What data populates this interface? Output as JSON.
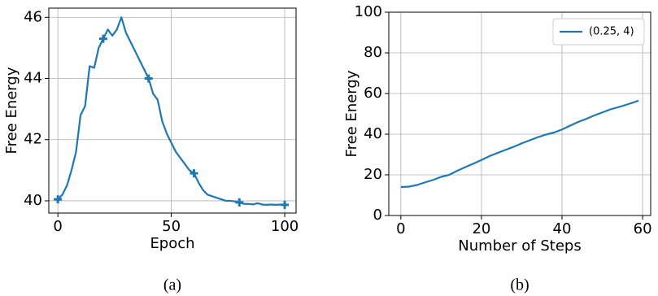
{
  "chart_data": [
    {
      "type": "line",
      "caption": "(a)",
      "xlabel": "Epoch",
      "ylabel": "Free Energy",
      "x": [
        0,
        2,
        4,
        6,
        8,
        10,
        12,
        14,
        16,
        18,
        20,
        22,
        24,
        26,
        28,
        30,
        32,
        34,
        36,
        38,
        40,
        42,
        44,
        46,
        48,
        50,
        52,
        54,
        56,
        58,
        60,
        62,
        64,
        66,
        68,
        70,
        72,
        74,
        76,
        78,
        80,
        82,
        84,
        86,
        88,
        90,
        92,
        94,
        96,
        98,
        100
      ],
      "values": [
        40.05,
        40.2,
        40.5,
        41.0,
        41.6,
        42.8,
        43.1,
        44.4,
        44.35,
        45.0,
        45.3,
        45.6,
        45.4,
        45.6,
        46.0,
        45.5,
        45.2,
        44.9,
        44.6,
        44.3,
        44.0,
        43.5,
        43.3,
        42.6,
        42.2,
        41.9,
        41.6,
        41.4,
        41.2,
        41.0,
        40.9,
        40.6,
        40.35,
        40.2,
        40.15,
        40.1,
        40.05,
        40.0,
        40.0,
        39.98,
        39.95,
        39.9,
        39.9,
        39.88,
        39.92,
        39.88,
        39.87,
        39.88,
        39.87,
        39.88,
        39.87
      ],
      "color": "#1f77b4",
      "marker": "+",
      "markevery": 10,
      "xlim": [
        -4,
        105
      ],
      "xticks": [
        0,
        50,
        100
      ],
      "ylim": [
        39.6,
        46.3
      ],
      "yticks": [
        40,
        42,
        44,
        46
      ],
      "grid": true
    },
    {
      "type": "line",
      "caption": "(b)",
      "xlabel": "Number of Steps",
      "ylabel": "Free Energy",
      "x": [
        0,
        2,
        4,
        6,
        8,
        10,
        12,
        14,
        16,
        18,
        20,
        22,
        24,
        26,
        28,
        30,
        32,
        34,
        36,
        38,
        40,
        42,
        44,
        46,
        48,
        50,
        52,
        54,
        56,
        58,
        59
      ],
      "series": [
        {
          "name": "(0.25, 4)",
          "color": "#1f77b4",
          "values": [
            14,
            14.2,
            15,
            16.3,
            17.5,
            19,
            20,
            22,
            23.8,
            25.5,
            27.3,
            29.2,
            30.8,
            32.3,
            33.8,
            35.5,
            37,
            38.5,
            39.8,
            40.8,
            42.3,
            44.2,
            46,
            47.5,
            49.2,
            50.7,
            52.2,
            53.3,
            54.5,
            55.8,
            56.5
          ]
        }
      ],
      "xlim": [
        -3,
        62
      ],
      "xticks": [
        0,
        20,
        40,
        60
      ],
      "ylim": [
        0,
        100
      ],
      "yticks": [
        0,
        20,
        40,
        60,
        80,
        100
      ],
      "grid": true,
      "legend": "upper right"
    }
  ]
}
